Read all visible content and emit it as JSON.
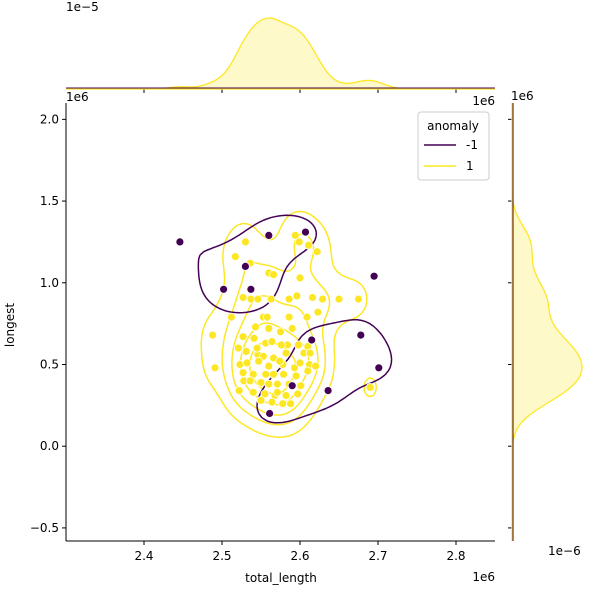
{
  "chart_data": {
    "type": "scatter",
    "xlabel": "total_length",
    "ylabel": "longest",
    "x_offset_label": "1e6",
    "y_offset_label": "1e6",
    "top_marginal_offset_label": "1e−5",
    "right_marginal_offset_label": "1e−6",
    "xlim": [
      2.3,
      2.85
    ],
    "ylim": [
      -0.58,
      2.1
    ],
    "xticks": [
      2.4,
      2.5,
      2.6,
      2.7,
      2.8
    ],
    "xtick_labels": [
      "2.4",
      "2.5",
      "2.6",
      "2.7",
      "2.8"
    ],
    "yticks": [
      -0.5,
      0.0,
      0.5,
      1.0,
      1.5,
      2.0
    ],
    "ytick_labels": [
      "−0.5",
      "0.0",
      "0.5",
      "1.0",
      "1.5",
      "2.0"
    ],
    "grid": false,
    "legend": {
      "title": "anomaly",
      "placement": "top-right",
      "entries": [
        {
          "label": "-1",
          "color": "#440154"
        },
        {
          "label": "1",
          "color": "#fde725"
        }
      ]
    },
    "series": [
      {
        "name": "-1",
        "color": "#440154",
        "points": [
          [
            2.446,
            1.25
          ],
          [
            2.56,
            1.29
          ],
          [
            2.607,
            1.31
          ],
          [
            2.502,
            0.96
          ],
          [
            2.537,
            0.96
          ],
          [
            2.53,
            1.1
          ],
          [
            2.695,
            1.04
          ],
          [
            2.678,
            0.68
          ],
          [
            2.615,
            0.65
          ],
          [
            2.701,
            0.48
          ],
          [
            2.59,
            0.37
          ],
          [
            2.636,
            0.34
          ],
          [
            2.561,
            0.2
          ]
        ]
      },
      {
        "name": "1",
        "color": "#fde725",
        "points": [
          [
            2.517,
            1.16
          ],
          [
            2.53,
            1.25
          ],
          [
            2.594,
            1.29
          ],
          [
            2.599,
            1.25
          ],
          [
            2.611,
            1.23
          ],
          [
            2.622,
            1.19
          ],
          [
            2.536,
            1.12
          ],
          [
            2.56,
            1.06
          ],
          [
            2.566,
            1.05
          ],
          [
            2.6,
            1.03
          ],
          [
            2.527,
            0.91
          ],
          [
            2.537,
            0.9
          ],
          [
            2.546,
            0.9
          ],
          [
            2.563,
            0.9
          ],
          [
            2.586,
            0.9
          ],
          [
            2.596,
            0.92
          ],
          [
            2.616,
            0.91
          ],
          [
            2.629,
            0.9
          ],
          [
            2.65,
            0.9
          ],
          [
            2.675,
            0.9
          ],
          [
            2.512,
            0.79
          ],
          [
            2.553,
            0.79
          ],
          [
            2.558,
            0.79
          ],
          [
            2.586,
            0.79
          ],
          [
            2.609,
            0.79
          ],
          [
            2.623,
            0.82
          ],
          [
            2.543,
            0.73
          ],
          [
            2.56,
            0.72
          ],
          [
            2.575,
            0.7
          ],
          [
            2.59,
            0.72
          ],
          [
            2.488,
            0.68
          ],
          [
            2.527,
            0.67
          ],
          [
            2.541,
            0.66
          ],
          [
            2.556,
            0.63
          ],
          [
            2.564,
            0.64
          ],
          [
            2.584,
            0.62
          ],
          [
            2.598,
            0.62
          ],
          [
            2.61,
            0.61
          ],
          [
            2.521,
            0.6
          ],
          [
            2.531,
            0.58
          ],
          [
            2.546,
            0.56
          ],
          [
            2.553,
            0.55
          ],
          [
            2.566,
            0.54
          ],
          [
            2.605,
            0.57
          ],
          [
            2.613,
            0.57
          ],
          [
            2.523,
            0.5
          ],
          [
            2.532,
            0.51
          ],
          [
            2.547,
            0.52
          ],
          [
            2.56,
            0.49
          ],
          [
            2.578,
            0.5
          ],
          [
            2.593,
            0.48
          ],
          [
            2.6,
            0.51
          ],
          [
            2.612,
            0.5
          ],
          [
            2.62,
            0.49
          ],
          [
            2.491,
            0.48
          ],
          [
            2.527,
            0.45
          ],
          [
            2.54,
            0.44
          ],
          [
            2.556,
            0.44
          ],
          [
            2.566,
            0.44
          ],
          [
            2.579,
            0.44
          ],
          [
            2.595,
            0.43
          ],
          [
            2.61,
            0.46
          ],
          [
            2.528,
            0.4
          ],
          [
            2.536,
            0.4
          ],
          [
            2.55,
            0.39
          ],
          [
            2.56,
            0.38
          ],
          [
            2.571,
            0.38
          ],
          [
            2.586,
            0.38
          ],
          [
            2.601,
            0.37
          ],
          [
            2.522,
            0.34
          ],
          [
            2.54,
            0.33
          ],
          [
            2.555,
            0.32
          ],
          [
            2.568,
            0.31
          ],
          [
            2.582,
            0.31
          ],
          [
            2.597,
            0.32
          ],
          [
            2.55,
            0.28
          ],
          [
            2.564,
            0.27
          ],
          [
            2.578,
            0.26
          ],
          [
            2.588,
            0.26
          ],
          [
            2.69,
            0.36
          ],
          [
            2.571,
            0.33
          ],
          [
            2.574,
            0.52
          ],
          [
            2.545,
            0.6
          ],
          [
            2.582,
            0.57
          ],
          [
            2.576,
            0.62
          ]
        ]
      }
    ]
  }
}
